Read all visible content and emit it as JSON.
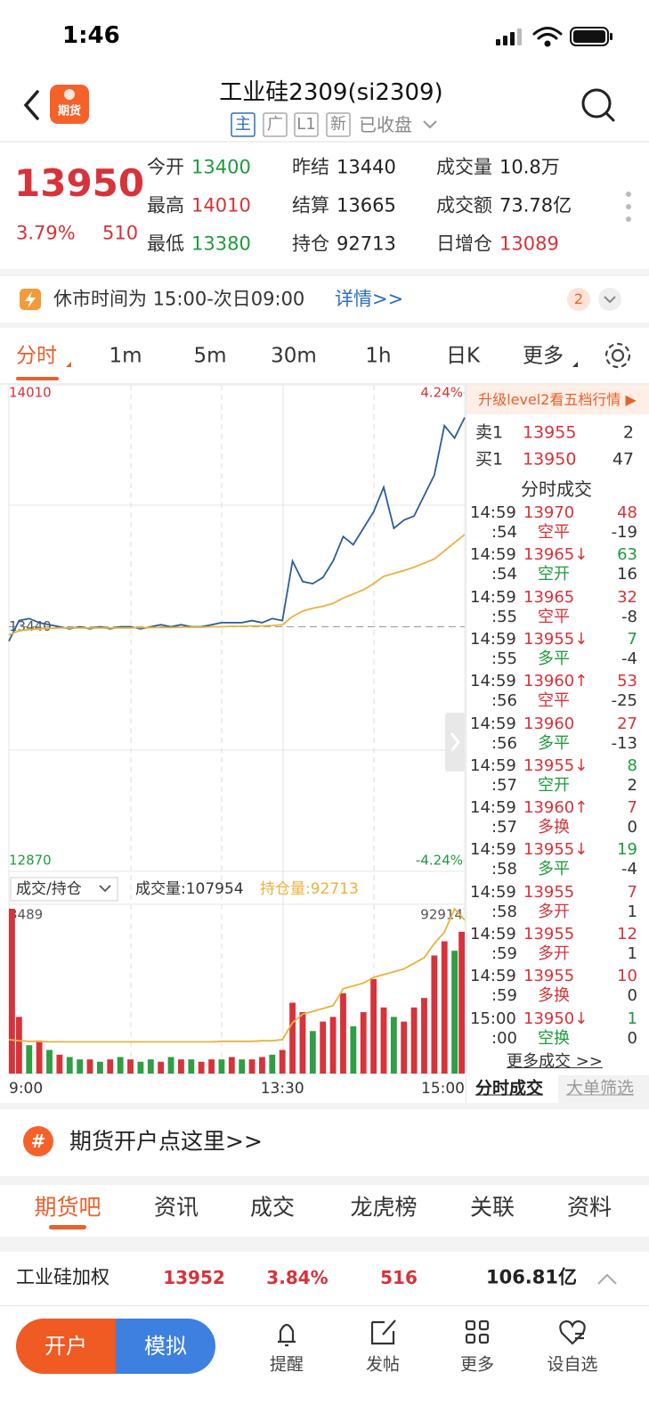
{
  "status_bar": {
    "time": "1:46"
  },
  "header": {
    "badge": "期货",
    "title": "工业硅2309(si2309)",
    "tags": [
      "主",
      "广",
      "L1",
      "新"
    ],
    "status": "已收盘"
  },
  "quote": {
    "price": "13950",
    "change_pct": "3.79%",
    "change": "510",
    "fields": [
      {
        "label": "今开",
        "value": "13400",
        "color": "#1f9b3d"
      },
      {
        "label": "昨结",
        "value": "13440",
        "color": "#222222"
      },
      {
        "label": "成交量",
        "value": "10.8万",
        "color": "#222222"
      },
      {
        "label": "最高",
        "value": "14010",
        "color": "#d8323a"
      },
      {
        "label": "结算",
        "value": "13665",
        "color": "#222222"
      },
      {
        "label": "成交额",
        "value": "73.78亿",
        "color": "#222222"
      },
      {
        "label": "最低",
        "value": "13380",
        "color": "#1f9b3d"
      },
      {
        "label": "持仓",
        "value": "92713",
        "color": "#222222"
      },
      {
        "label": "日增仓",
        "value": "13089",
        "color": "#d8323a"
      }
    ]
  },
  "notice": {
    "text": "休市时间为 15:00-次日09:00",
    "link": "详情>>",
    "badge": "2"
  },
  "chart_tabs": [
    "分时",
    "1m",
    "5m",
    "30m",
    "1h",
    "日K",
    "更多"
  ],
  "chart_data": [
    {
      "type": "line",
      "ylim": [
        12870,
        14010
      ],
      "yticks": [
        14010,
        13440,
        12870
      ],
      "y2lim": [
        -4.24,
        4.24
      ],
      "y2ticks": [
        {
          "value": 4.24,
          "label": "4.24%"
        },
        {
          "value": -4.24,
          "label": "-4.24%"
        }
      ],
      "series": [
        {
          "color": "#2d5d98",
          "values": [
            13405,
            13455,
            13460,
            13450,
            13445,
            13440,
            13435,
            13440,
            13435,
            13440,
            13435,
            13440,
            13440,
            13435,
            13440,
            13445,
            13440,
            13445,
            13440,
            13440,
            13445,
            13450,
            13450,
            13450,
            13455,
            13450,
            13460,
            13455,
            13600,
            13550,
            13545,
            13560,
            13600,
            13660,
            13640,
            13680,
            13720,
            13780,
            13680,
            13700,
            13710,
            13760,
            13810,
            13930,
            13900,
            13950
          ]
        },
        {
          "color": "#e8b33c",
          "values": [
            13420,
            13430,
            13433,
            13435,
            13436,
            13437,
            13437,
            13437,
            13437,
            13437,
            13437,
            13437,
            13437,
            13438,
            13438,
            13438,
            13438,
            13439,
            13439,
            13439,
            13440,
            13440,
            13441,
            13441,
            13442,
            13442,
            13443,
            13445,
            13465,
            13478,
            13485,
            13490,
            13497,
            13510,
            13520,
            13530,
            13545,
            13563,
            13570,
            13577,
            13585,
            13595,
            13605,
            13625,
            13645,
            13665
          ]
        }
      ]
    },
    {
      "type": "bar",
      "selector": "成交/持仓",
      "categories": [
        "9:00",
        null,
        null,
        null,
        null,
        null,
        null,
        null,
        null,
        null,
        null,
        null,
        null,
        null,
        null,
        null,
        null,
        null,
        null,
        null,
        null,
        null,
        null,
        null,
        null,
        null,
        null,
        "13:30",
        null,
        null,
        null,
        null,
        null,
        null,
        null,
        null,
        null,
        null,
        null,
        null,
        null,
        null,
        null,
        null,
        null,
        "15:00"
      ],
      "ylim": [
        0,
        3489
      ],
      "yticks": [
        3489
      ],
      "y2lim": [
        90000,
        92914
      ],
      "y2ticks": [
        92914
      ],
      "series": [
        {
          "name": "成交量:107954",
          "values": [
            3489,
            1200,
            600,
            700,
            500,
            400,
            350,
            300,
            300,
            250,
            300,
            350,
            300,
            250,
            300,
            250,
            350,
            300,
            300,
            250,
            300,
            300,
            350,
            300,
            300,
            350,
            400,
            500,
            1500,
            1300,
            900,
            1100,
            1200,
            1700,
            1000,
            1300,
            2000,
            1400,
            1200,
            1100,
            1400,
            1600,
            2500,
            2800,
            2600,
            3000
          ],
          "colors": [
            "#d8323a",
            "#d8323a",
            "#2f9e44",
            "#d8323a",
            "#2f9e44",
            "#d8323a",
            "#2f9e44",
            "#2f9e44",
            "#d8323a",
            "#2f9e44",
            "#d8323a",
            "#2f9e44",
            "#d8323a",
            "#2f9e44",
            "#2f9e44",
            "#d8323a",
            "#2f9e44",
            "#d8323a",
            "#2f9e44",
            "#d8323a",
            "#d8323a",
            "#2f9e44",
            "#d8323a",
            "#2f9e44",
            "#d8323a",
            "#d8323a",
            "#2f9e44",
            "#d8323a",
            "#d8323a",
            "#d8323a",
            "#2f9e44",
            "#d8323a",
            "#d8323a",
            "#d8323a",
            "#2f9e44",
            "#d8323a",
            "#d8323a",
            "#d8323a",
            "#2f9e44",
            "#d8323a",
            "#d8323a",
            "#d8323a",
            "#d8323a",
            "#d8323a",
            "#2f9e44",
            "#d8323a"
          ]
        },
        {
          "name": "持仓量:92713",
          "color": "#e8b33c",
          "axis": "y2",
          "values": [
            90600,
            90580,
            90570,
            90570,
            90560,
            90560,
            90560,
            90560,
            90560,
            90560,
            90560,
            90560,
            90560,
            90560,
            90560,
            90560,
            90560,
            90560,
            90560,
            90560,
            90560,
            90570,
            90570,
            90570,
            90570,
            90580,
            90580,
            90600,
            90900,
            91050,
            91100,
            91150,
            91200,
            91500,
            91550,
            91600,
            91700,
            91750,
            91800,
            91850,
            91950,
            92050,
            92300,
            92500,
            92914,
            92713
          ]
        }
      ]
    }
  ],
  "order_book": {
    "banner": "升级level2看五档行情 ▶",
    "rows": [
      {
        "label": "卖1",
        "price": "13955",
        "volume": "2"
      },
      {
        "label": "买1",
        "price": "13950",
        "volume": "47"
      }
    ]
  },
  "trades": {
    "title": "分时成交",
    "rows": [
      {
        "time": "14:59",
        "sec": ":54",
        "price": "13970",
        "volume": "48",
        "type": "空平",
        "delta": "-19",
        "volume_color": "#d8323a",
        "type_color": "#d8323a"
      },
      {
        "time": "14:59",
        "sec": ":54",
        "price": "13965↓",
        "volume": "63",
        "type": "空开",
        "delta": "16",
        "volume_color": "#1f9b3d",
        "type_color": "#1f9b3d"
      },
      {
        "time": "14:59",
        "sec": ":55",
        "price": "13965",
        "volume": "32",
        "type": "空平",
        "delta": "-8",
        "volume_color": "#d8323a",
        "type_color": "#d8323a"
      },
      {
        "time": "14:59",
        "sec": ":55",
        "price": "13955↓",
        "volume": "7",
        "type": "多平",
        "delta": "-4",
        "volume_color": "#1f9b3d",
        "type_color": "#1f9b3d"
      },
      {
        "time": "14:59",
        "sec": ":56",
        "price": "13960↑",
        "volume": "53",
        "type": "空平",
        "delta": "-25",
        "volume_color": "#d8323a",
        "type_color": "#d8323a"
      },
      {
        "time": "14:59",
        "sec": ":56",
        "price": "13960",
        "volume": "27",
        "type": "多平",
        "delta": "-13",
        "volume_color": "#d8323a",
        "type_color": "#1f9b3d"
      },
      {
        "time": "14:59",
        "sec": ":57",
        "price": "13955↓",
        "volume": "8",
        "type": "空开",
        "delta": "2",
        "volume_color": "#1f9b3d",
        "type_color": "#1f9b3d"
      },
      {
        "time": "14:59",
        "sec": ":57",
        "price": "13960↑",
        "volume": "7",
        "type": "多换",
        "delta": "0",
        "volume_color": "#d8323a",
        "type_color": "#d8323a"
      },
      {
        "time": "14:59",
        "sec": ":58",
        "price": "13955↓",
        "volume": "19",
        "type": "多平",
        "delta": "-4",
        "volume_color": "#1f9b3d",
        "type_color": "#1f9b3d"
      },
      {
        "time": "14:59",
        "sec": ":58",
        "price": "13955",
        "volume": "7",
        "type": "多开",
        "delta": "1",
        "volume_color": "#d8323a",
        "type_color": "#d8323a"
      },
      {
        "time": "14:59",
        "sec": ":59",
        "price": "13955",
        "volume": "12",
        "type": "多开",
        "delta": "1",
        "volume_color": "#d8323a",
        "type_color": "#d8323a"
      },
      {
        "time": "14:59",
        "sec": ":59",
        "price": "13955",
        "volume": "10",
        "type": "多换",
        "delta": "0",
        "volume_color": "#d8323a",
        "type_color": "#d8323a"
      },
      {
        "time": "15:00",
        "sec": ":00",
        "price": "13950↓",
        "volume": "1",
        "type": "空换",
        "delta": "0",
        "volume_color": "#1f9b3d",
        "type_color": "#1f9b3d"
      }
    ],
    "more": "更多成交 >>",
    "tabs": [
      "分时成交",
      "大单筛选"
    ]
  },
  "promo": {
    "icon": "#",
    "text": "期货开户点这里>>"
  },
  "section_tabs": [
    "期货吧",
    "资讯",
    "成交",
    "龙虎榜",
    "关联",
    "资料"
  ],
  "ticker": {
    "name": "工业硅加权",
    "price": "13952",
    "change_pct": "3.84%",
    "change": "516",
    "amount": "106.81亿"
  },
  "bottom_nav": {
    "buttons": [
      "开户",
      "模拟"
    ],
    "items": [
      "提醒",
      "发帖",
      "更多",
      "设自选"
    ]
  }
}
